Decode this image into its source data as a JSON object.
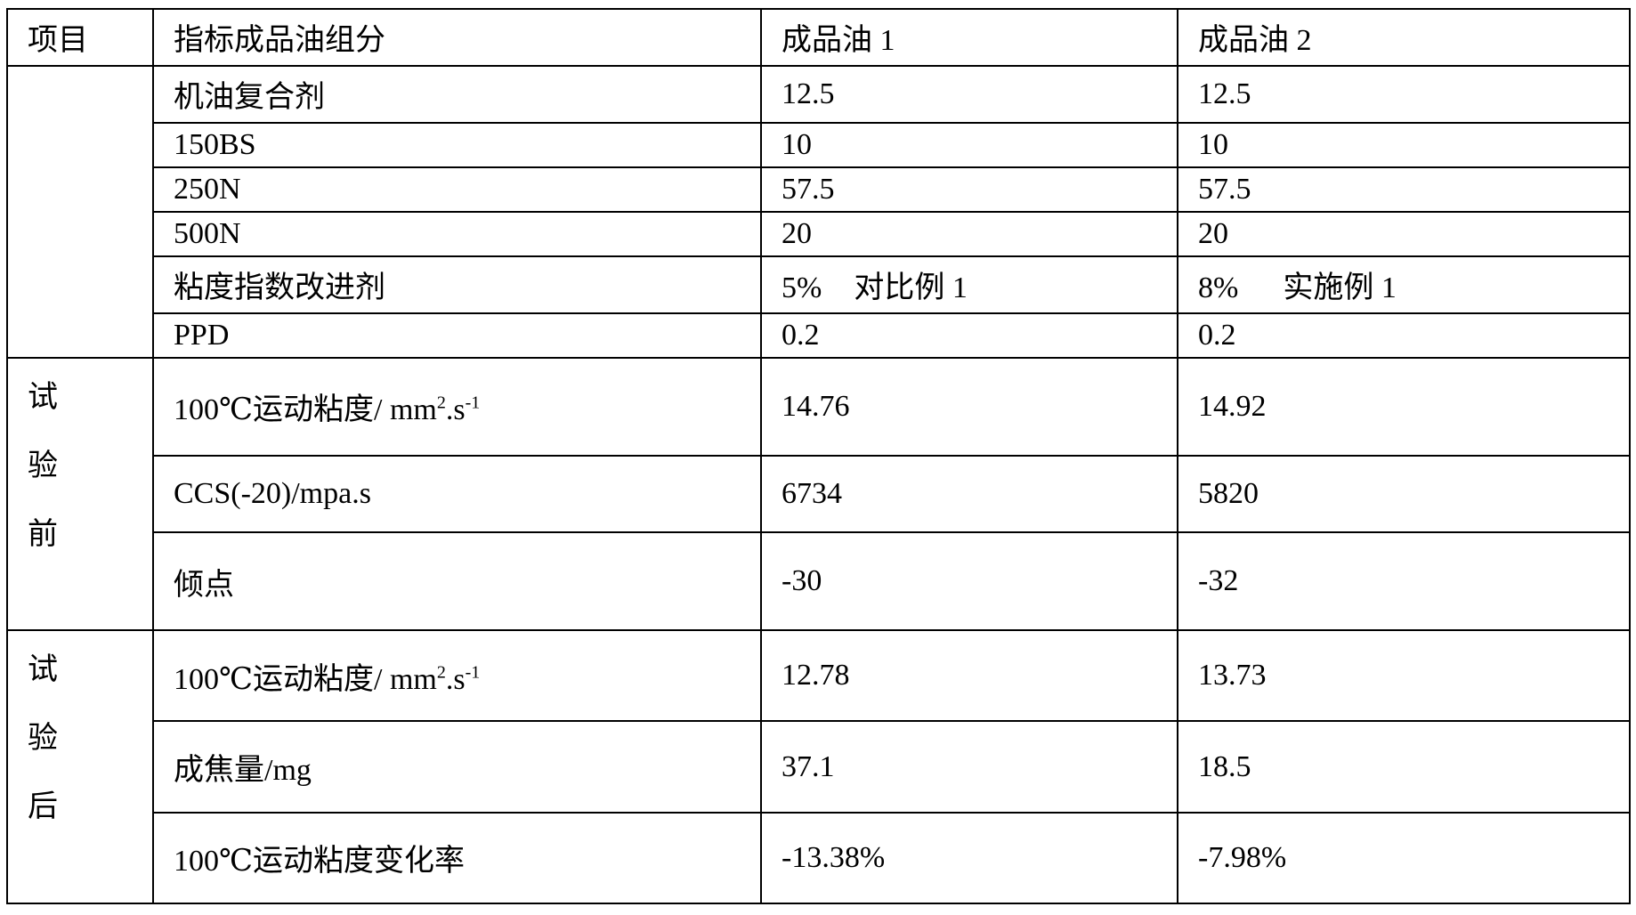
{
  "header": {
    "item": "项目",
    "component": "指标成品油组分",
    "oil1": "成品油 1",
    "oil2": "成品油 2"
  },
  "groups": {
    "before": [
      "试",
      "验",
      "前"
    ],
    "after": [
      "试",
      "验",
      "后"
    ]
  },
  "composition": [
    {
      "label": "机油复合剂",
      "oil1": "12.5",
      "oil2": "12.5"
    },
    {
      "label": "150BS",
      "oil1": "10",
      "oil2": "10"
    },
    {
      "label": "250N",
      "oil1": "57.5",
      "oil2": "57.5"
    },
    {
      "label": "500N",
      "oil1": "20",
      "oil2": "20"
    },
    {
      "label": "粘度指数改进剂",
      "oil1": "5%",
      "oil1_note": "对比例 1",
      "oil2": "8%",
      "oil2_note": "实施例 1"
    },
    {
      "label": "PPD",
      "oil1": "0.2",
      "oil2": "0.2"
    }
  ],
  "before_test": [
    {
      "label": "100℃运动粘度/ mm",
      "sup1": "2",
      "mid": ".s",
      "sup2": "-1",
      "oil1": "14.76",
      "oil2": "14.92"
    },
    {
      "label": "CCS(-20)/mpa.s",
      "oil1": "6734",
      "oil2": "5820"
    },
    {
      "label": "倾点",
      "oil1": "-30",
      "oil2": "-32"
    }
  ],
  "after_test": [
    {
      "label": "100℃运动粘度/ mm",
      "sup1": "2",
      "mid": ".s",
      "sup2": "-1",
      "oil1": "12.78",
      "oil2": "13.73"
    },
    {
      "label": "成焦量/mg",
      "oil1": "37.1",
      "oil2": "18.5"
    },
    {
      "label": "100℃运动粘度变化率",
      "oil1": "-13.38%",
      "oil2": "-7.98%"
    }
  ]
}
